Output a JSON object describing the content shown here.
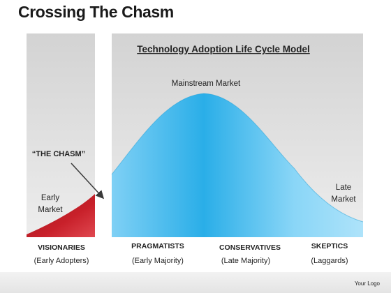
{
  "title": "Crossing The Chasm",
  "panel_title": "Technology Adoption Life Cycle Model",
  "chasm_label": "“THE CHASM”",
  "curve_labels": {
    "mainstream": "Mainstream Market",
    "early_line1": "Early",
    "early_line2": "Market",
    "late_line1": "Late",
    "late_line2": "Market"
  },
  "segments": [
    {
      "name": "VISIONARIES",
      "sub": "(Early Adopters)"
    },
    {
      "name": "PRAGMATISTS",
      "sub": "(Early Majority)"
    },
    {
      "name": "CONSERVATIVES",
      "sub": "(Late Majority)"
    },
    {
      "name": "SKEPTICS",
      "sub": "(Laggards)"
    }
  ],
  "footer": {
    "logo_text": "Your Logo"
  },
  "colors": {
    "early_fill": "#c8202a",
    "curve_fill": "#38b6ee",
    "curve_fill_light": "#7fd0f5",
    "panel_bg": "#dcdcdc",
    "footer_bar": "#e8e8e8"
  }
}
